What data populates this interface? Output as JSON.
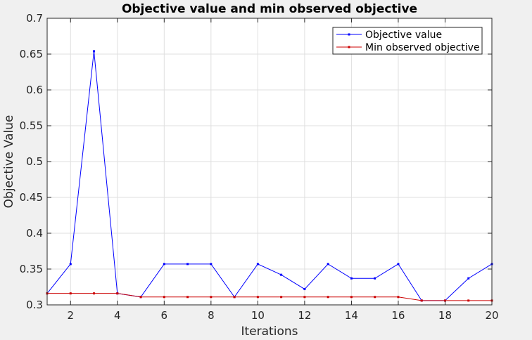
{
  "chart_data": {
    "type": "line",
    "title": "Objective value and min observed objective",
    "xlabel": "Iterations",
    "ylabel": "Objective Value",
    "xlim": [
      1,
      20
    ],
    "ylim": [
      0.3,
      0.7
    ],
    "xticks": [
      2,
      4,
      6,
      8,
      10,
      12,
      14,
      16,
      18,
      20
    ],
    "yticks": [
      0.3,
      0.35,
      0.4,
      0.45,
      0.5,
      0.55,
      0.6,
      0.65,
      0.7
    ],
    "grid": true,
    "legend_position": "top-right",
    "x": [
      1,
      2,
      3,
      4,
      5,
      6,
      7,
      8,
      9,
      10,
      11,
      12,
      13,
      14,
      15,
      16,
      17,
      18,
      19,
      20
    ],
    "series": [
      {
        "name": "Objective value",
        "color": "#0000ff",
        "values": [
          0.316,
          0.357,
          0.654,
          0.316,
          0.311,
          0.357,
          0.357,
          0.357,
          0.311,
          0.357,
          0.342,
          0.322,
          0.357,
          0.337,
          0.337,
          0.357,
          0.306,
          0.306,
          0.337,
          0.357
        ]
      },
      {
        "name": "Min observed objective",
        "color": "#cc0000",
        "values": [
          0.316,
          0.316,
          0.316,
          0.316,
          0.311,
          0.311,
          0.311,
          0.311,
          0.311,
          0.311,
          0.311,
          0.311,
          0.311,
          0.311,
          0.311,
          0.311,
          0.306,
          0.306,
          0.306,
          0.306
        ]
      }
    ]
  }
}
